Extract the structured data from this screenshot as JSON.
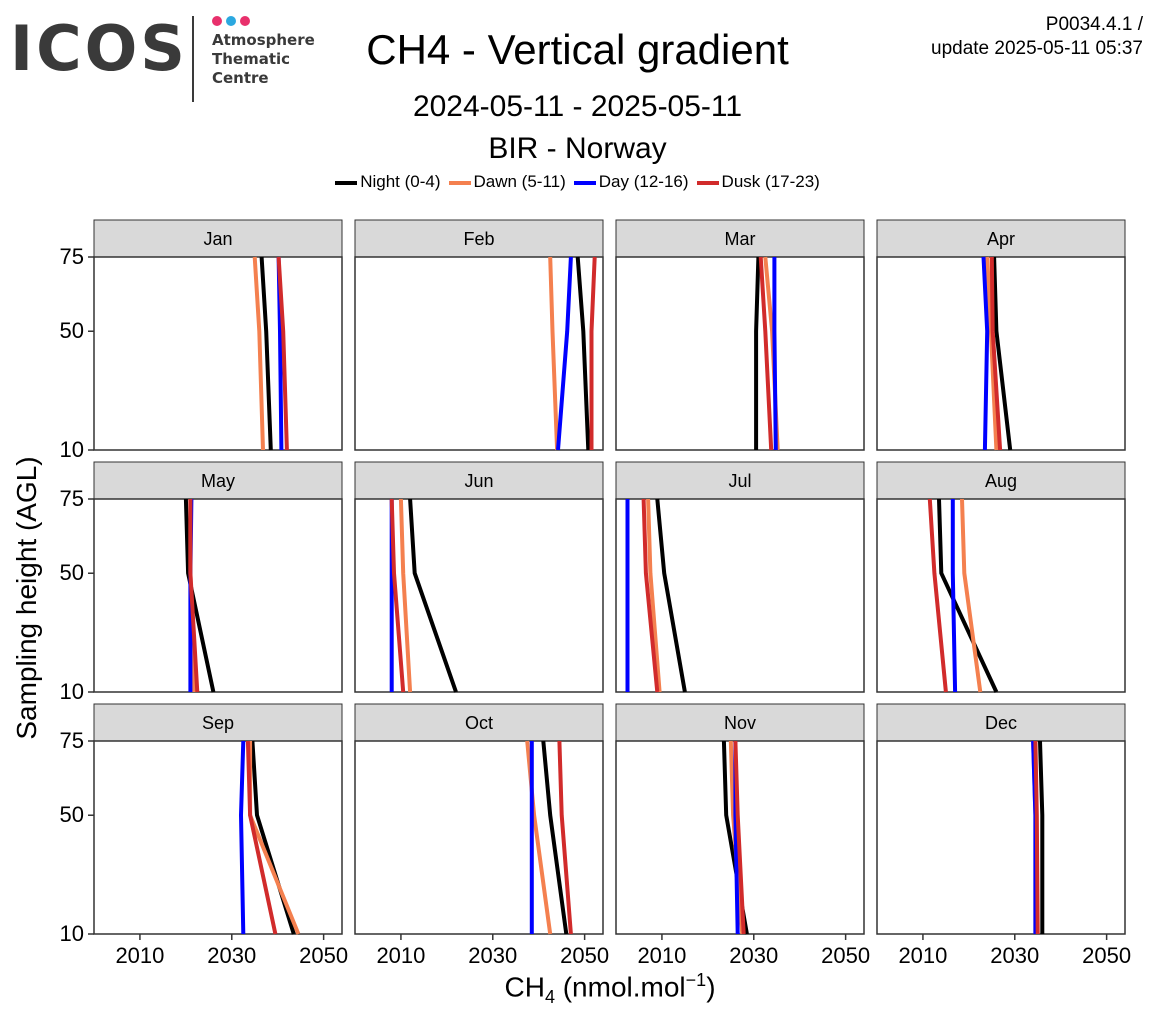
{
  "header": {
    "logo_text": "ICOS",
    "logo_lines": [
      "Atmosphere",
      "Thematic",
      "Centre"
    ],
    "logo_dot_colors": [
      "#e8306c",
      "#2ba8e0",
      "#e8306c"
    ],
    "version_line1": "P0034.4.1 /",
    "version_line2": "update  2025-05-11 05:37"
  },
  "chart_data": {
    "type": "line",
    "title": "CH4 - Vertical gradient",
    "subtitle_dates": "2024-05-11 - 2025-05-11",
    "subtitle_station": "BIR - Norway",
    "xlabel_main": "CH",
    "xlabel_sub": "4",
    "xlabel_unit_pre": " (nmol.mol",
    "xlabel_sup": "−1",
    "xlabel_unit_post": ")",
    "ylabel": "Sampling height (AGL)",
    "xlim": [
      2000,
      2054
    ],
    "ylim": [
      10,
      75
    ],
    "xticks": [
      2010,
      2030,
      2050
    ],
    "yticks": [
      10,
      50,
      75
    ],
    "heights": [
      10,
      50,
      75
    ],
    "grid": false,
    "legend_position": "top",
    "series_meta": [
      {
        "name": "Night (0-4)",
        "color": "#000000"
      },
      {
        "name": "Dawn (5-11)",
        "color": "#f4804f"
      },
      {
        "name": "Day (12-16)",
        "color": "#0000ff"
      },
      {
        "name": "Dusk (17-23)",
        "color": "#d12b2b"
      }
    ],
    "panels": [
      {
        "month": "Jan",
        "series": {
          "Night (0-4)": [
            2038.5,
            2037.5,
            2036.5
          ],
          "Dawn (5-11)": [
            2036.8,
            2036.0,
            2035.0
          ],
          "Day (12-16)": [
            2040.8,
            2040.5,
            2040.2
          ],
          "Dusk (17-23)": [
            2042.0,
            2041.2,
            2040.2
          ]
        }
      },
      {
        "month": "Feb",
        "series": {
          "Night (0-4)": [
            2050.8,
            2049.7,
            2048.5
          ],
          "Dawn (5-11)": [
            2044.0,
            2043.0,
            2042.5
          ],
          "Day (12-16)": [
            2044.2,
            2046.2,
            2047.0
          ],
          "Dusk (17-23)": [
            2051.5,
            2051.5,
            2052.2
          ]
        }
      },
      {
        "month": "Mar",
        "series": {
          "Night (0-4)": [
            2030.5,
            2030.5,
            2031.0
          ],
          "Dawn (5-11)": [
            2035.2,
            2034.0,
            2032.5
          ],
          "Day (12-16)": [
            2034.8,
            2034.5,
            2034.5
          ],
          "Dusk (17-23)": [
            2033.8,
            2032.5,
            2031.5
          ]
        }
      },
      {
        "month": "Apr",
        "series": {
          "Night (0-4)": [
            2029.0,
            2026.0,
            2025.5
          ],
          "Dawn (5-11)": [
            2026.0,
            2024.8,
            2024.0
          ],
          "Day (12-16)": [
            2023.5,
            2024.0,
            2023.2
          ],
          "Dusk (17-23)": [
            2026.8,
            2025.2,
            2025.0
          ]
        }
      },
      {
        "month": "May",
        "series": {
          "Night (0-4)": [
            2026.0,
            2020.5,
            2020.0
          ],
          "Dawn (5-11)": [
            2021.8,
            2021.0,
            2021.0
          ],
          "Day (12-16)": [
            2021.0,
            2021.0,
            2021.2
          ],
          "Dusk (17-23)": [
            2022.5,
            2021.0,
            2021.0
          ]
        }
      },
      {
        "month": "Jun",
        "series": {
          "Night (0-4)": [
            2022.0,
            2013.0,
            2012.0
          ],
          "Dawn (5-11)": [
            2012.0,
            2010.5,
            2010.0
          ],
          "Day (12-16)": [
            2008.0,
            2008.0,
            2008.0
          ],
          "Dusk (17-23)": [
            2010.5,
            2008.5,
            2008.0
          ]
        }
      },
      {
        "month": "Jul",
        "series": {
          "Night (0-4)": [
            2015.0,
            2010.5,
            2009.0
          ],
          "Dawn (5-11)": [
            2009.5,
            2007.5,
            2007.0
          ],
          "Day (12-16)": [
            2002.5,
            2002.5,
            2002.5
          ],
          "Dusk (17-23)": [
            2009.0,
            2006.5,
            2006.0
          ]
        }
      },
      {
        "month": "Aug",
        "series": {
          "Night (0-4)": [
            2026.0,
            2014.0,
            2013.5
          ],
          "Dawn (5-11)": [
            2022.5,
            2019.0,
            2018.5
          ],
          "Day (12-16)": [
            2017.0,
            2016.5,
            2016.5
          ],
          "Dusk (17-23)": [
            2015.0,
            2012.5,
            2011.5
          ]
        }
      },
      {
        "month": "Sep",
        "series": {
          "Night (0-4)": [
            2043.5,
            2035.5,
            2034.5
          ],
          "Dawn (5-11)": [
            2044.5,
            2034.0,
            2034.0
          ],
          "Day (12-16)": [
            2032.5,
            2032.0,
            2032.5
          ],
          "Dusk (17-23)": [
            2039.5,
            2034.0,
            2033.5
          ]
        }
      },
      {
        "month": "Oct",
        "series": {
          "Night (0-4)": [
            2046.0,
            2042.5,
            2041.0
          ],
          "Dawn (5-11)": [
            2042.5,
            2039.0,
            2037.5
          ],
          "Day (12-16)": [
            2038.5,
            2038.5,
            2038.5
          ],
          "Dusk (17-23)": [
            2047.0,
            2045.0,
            2044.5
          ]
        }
      },
      {
        "month": "Nov",
        "series": {
          "Night (0-4)": [
            2028.5,
            2024.0,
            2023.5
          ],
          "Dawn (5-11)": [
            2027.5,
            2025.5,
            2025.0
          ],
          "Day (12-16)": [
            2026.5,
            2026.0,
            2026.0
          ],
          "Dusk (17-23)": [
            2027.8,
            2026.5,
            2026.0
          ]
        }
      },
      {
        "month": "Dec",
        "series": {
          "Night (0-4)": [
            2036.0,
            2036.0,
            2035.5
          ],
          "Dawn (5-11)": [
            2034.5,
            2034.5,
            2034.0
          ],
          "Day (12-16)": [
            2034.5,
            2034.5,
            2034.0
          ],
          "Dusk (17-23)": [
            2035.0,
            2034.8,
            2034.5
          ]
        }
      }
    ]
  }
}
